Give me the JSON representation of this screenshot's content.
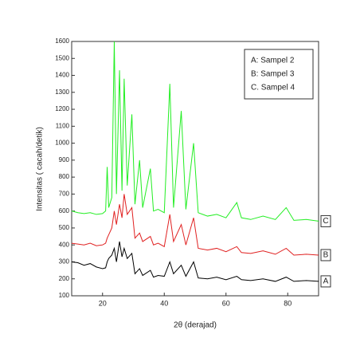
{
  "chart_data": {
    "type": "line",
    "xlabel": "2θ (derajad)",
    "ylabel": "Intensitas ( cacah/detik)",
    "x": [
      10,
      12,
      14,
      16,
      18,
      20,
      21,
      21.5,
      22,
      23,
      23.8,
      24.5,
      25.5,
      26.3,
      27,
      28,
      29.5,
      30.5,
      32,
      33,
      35.5,
      36.5,
      38,
      40,
      41.8,
      43,
      45.5,
      47,
      49.5,
      51,
      54,
      57,
      60,
      63.5,
      65,
      68,
      72,
      76,
      79.5,
      82,
      86,
      90
    ],
    "series": [
      {
        "name": "A: Sampel 2",
        "tag": "A",
        "color": "#000000",
        "values": [
          300,
          295,
          280,
          290,
          270,
          260,
          265,
          300,
          320,
          340,
          380,
          300,
          420,
          330,
          380,
          320,
          350,
          230,
          260,
          220,
          250,
          210,
          220,
          215,
          300,
          230,
          280,
          215,
          300,
          205,
          200,
          210,
          195,
          215,
          195,
          190,
          200,
          185,
          210,
          185,
          190,
          185
        ]
      },
      {
        "name": "B: Sampel 3",
        "tag": "B",
        "color": "#e02020",
        "values": [
          410,
          405,
          400,
          410,
          395,
          400,
          410,
          440,
          460,
          500,
          600,
          520,
          640,
          560,
          700,
          580,
          620,
          440,
          470,
          420,
          450,
          400,
          410,
          390,
          580,
          420,
          520,
          400,
          560,
          380,
          370,
          380,
          360,
          390,
          355,
          350,
          365,
          345,
          380,
          340,
          345,
          340
        ]
      },
      {
        "name": "C. Sampel 4",
        "tag": "C",
        "color": "#22ee22",
        "values": [
          600,
          590,
          585,
          590,
          580,
          585,
          600,
          860,
          620,
          680,
          1600,
          700,
          1430,
          720,
          1380,
          750,
          1170,
          640,
          900,
          620,
          850,
          600,
          610,
          590,
          1350,
          620,
          1190,
          610,
          1000,
          590,
          570,
          580,
          560,
          650,
          560,
          550,
          570,
          550,
          620,
          545,
          550,
          540
        ]
      }
    ],
    "xlim": [
      10,
      90
    ],
    "xticks": [
      20,
      40,
      60,
      80
    ],
    "ylim": [
      100,
      1600
    ],
    "yticks": [
      100,
      200,
      300,
      400,
      500,
      600,
      700,
      800,
      900,
      1000,
      1100,
      1200,
      1300,
      1400,
      1500,
      1600
    ],
    "legend": "upper right"
  }
}
